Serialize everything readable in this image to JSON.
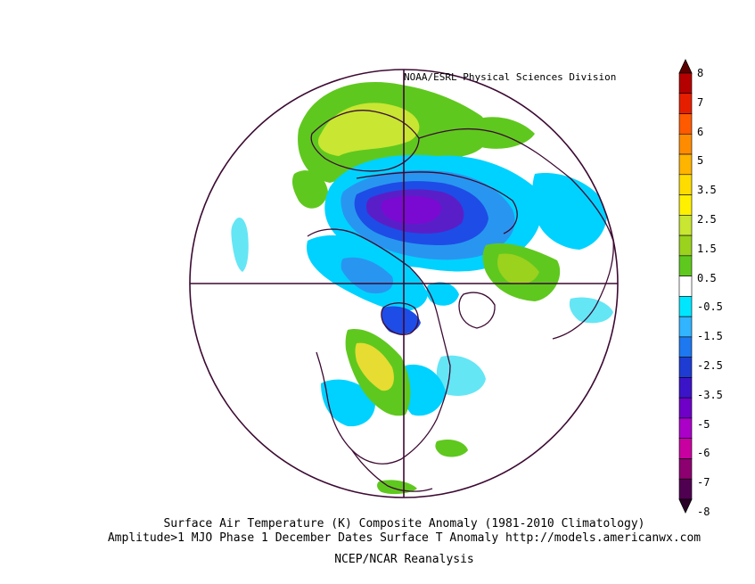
{
  "credit": "NOAA/ESRL Physical Sciences Division",
  "caption": {
    "line1": "Surface Air Temperature (K) Composite Anomaly (1981-2010 Climatology)",
    "line2": "Amplitude>1 MJO Phase 1 December Dates Surface T Anomaly http://models.americanwx.com",
    "line3": "NCEP/NCAR Reanalysis"
  },
  "colorbar": {
    "labels": [
      "8",
      "7",
      "6",
      "5",
      "3.5",
      "2.5",
      "1.5",
      "0.5",
      "-0.5",
      "-1.5",
      "-2.5",
      "-3.5",
      "-5",
      "-6",
      "-7",
      "-8"
    ],
    "colors": [
      "#5c0000",
      "#b40000",
      "#e61e00",
      "#ff5a00",
      "#ff8c00",
      "#ffb400",
      "#ffdc00",
      "#fff000",
      "#c8e632",
      "#9ad21e",
      "#5fc81e",
      "#ffffff",
      "#00e6ff",
      "#32b4ff",
      "#1e78f0",
      "#1e3cd2",
      "#3c14c8",
      "#6e00c8",
      "#aa00c8",
      "#c800a0",
      "#8c0070",
      "#500050",
      "#280028"
    ]
  },
  "palette": {
    "map_outline": "#3c0a32",
    "warm_light": "#c8e632",
    "warm_mid": "#5fc81e",
    "warm_yellow": "#e6dc32",
    "cool_light": "#64e6f5",
    "cool_cyan": "#00d2ff",
    "cool_blue": "#2896f0",
    "cool_deep": "#1e4ce6",
    "cool_purple": "#5a1ec8",
    "cool_violet": "#7a0ad2"
  }
}
